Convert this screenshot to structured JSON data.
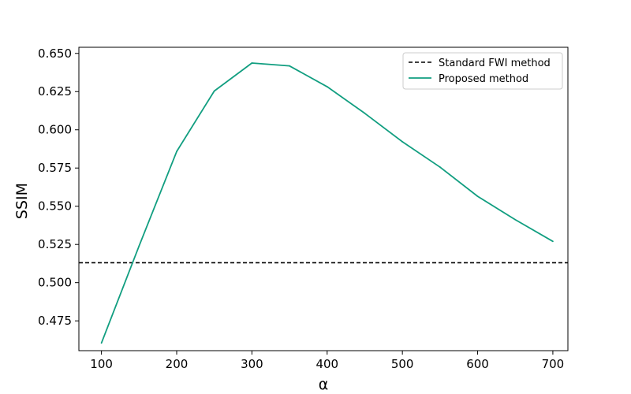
{
  "chart_data": {
    "type": "line",
    "title": "",
    "xlabel": "α",
    "ylabel": "SSIM",
    "xlim": [
      70,
      720
    ],
    "ylim": [
      0.4555,
      0.654
    ],
    "xticks": [
      100,
      200,
      300,
      400,
      500,
      600,
      700
    ],
    "yticks": [
      0.475,
      0.5,
      0.525,
      0.55,
      0.575,
      0.6,
      0.625,
      0.65
    ],
    "ytick_labels": [
      "0.475",
      "0.500",
      "0.525",
      "0.550",
      "0.575",
      "0.600",
      "0.625",
      "0.650"
    ],
    "grid": false,
    "legend_position": "top-right",
    "reference_lines": [
      {
        "name": "Standard FWI method",
        "y": 0.513,
        "color": "#000000",
        "style": "dashed"
      }
    ],
    "series": [
      {
        "name": "Proposed method",
        "color": "#119e80",
        "x": [
          100,
          150,
          200,
          250,
          300,
          350,
          400,
          450,
          500,
          550,
          600,
          650,
          700
        ],
        "values": [
          0.4605,
          0.524,
          0.5858,
          0.6254,
          0.6437,
          0.6418,
          0.6282,
          0.6108,
          0.5922,
          0.5756,
          0.5565,
          0.5412,
          0.527
        ]
      }
    ]
  }
}
